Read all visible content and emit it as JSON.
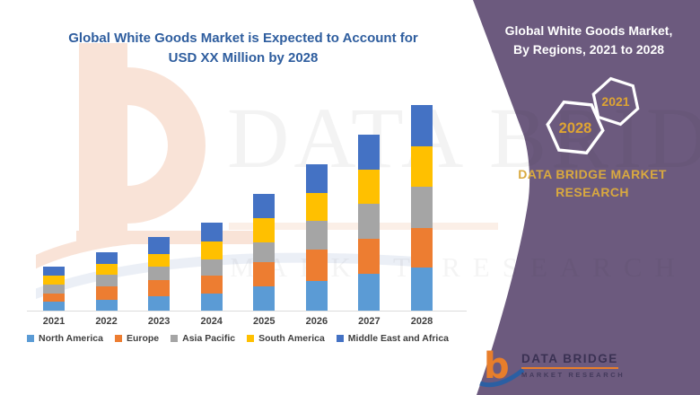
{
  "chart": {
    "title_line1": "Global White Goods Market is Expected to Account for",
    "title_line2": "USD XX Million by 2028",
    "title_color": "#2E5D9E"
  },
  "chart_data": {
    "type": "bar",
    "stacked": true,
    "title": "Global White Goods Market is Expected to Account for USD XX Million by 2028",
    "categories": [
      "2021",
      "2022",
      "2023",
      "2024",
      "2025",
      "2026",
      "2027",
      "2028"
    ],
    "series": [
      {
        "name": "North America",
        "color": "#5B9BD5",
        "values": [
          10,
          12,
          16,
          19,
          27,
          33,
          41,
          48
        ]
      },
      {
        "name": "Europe",
        "color": "#ED7D31",
        "values": [
          9,
          15,
          18,
          20,
          27,
          35,
          39,
          44
        ]
      },
      {
        "name": "Asia Pacific",
        "color": "#A5A5A5",
        "values": [
          10,
          13,
          15,
          18,
          22,
          32,
          39,
          46
        ]
      },
      {
        "name": "South America",
        "color": "#FFC000",
        "values": [
          10,
          12,
          14,
          20,
          27,
          31,
          38,
          45
        ]
      },
      {
        "name": "Middle East and Africa",
        "color": "#4472C4",
        "values": [
          10,
          13,
          19,
          21,
          27,
          32,
          39,
          46
        ]
      }
    ],
    "bar_totals": [
      49,
      65,
      82,
      98,
      130,
      163,
      196,
      229
    ],
    "xlabel": "",
    "ylabel": "",
    "y_axis_visible": false,
    "units": "relative height units (actual values masked as USD XX Million)",
    "legend_position": "bottom",
    "grid": false
  },
  "panel": {
    "background": "#6C5A7E",
    "heading_line1": "Global White Goods Market,",
    "heading_line2": "By Regions, 2021 to 2028",
    "hexagons": [
      {
        "label": "2021"
      },
      {
        "label": "2028"
      }
    ],
    "brand_line1": "DATA BRIDGE MARKET",
    "brand_line2": "RESEARCH",
    "accent_gold": "#D9A93F"
  },
  "logo": {
    "glyph": "b",
    "title": "DATA BRIDGE",
    "subtitle": "MARKET RESEARCH"
  },
  "watermark": {
    "word1": "DATA BRIDGE",
    "word2": "MARKET RESEARCH"
  }
}
